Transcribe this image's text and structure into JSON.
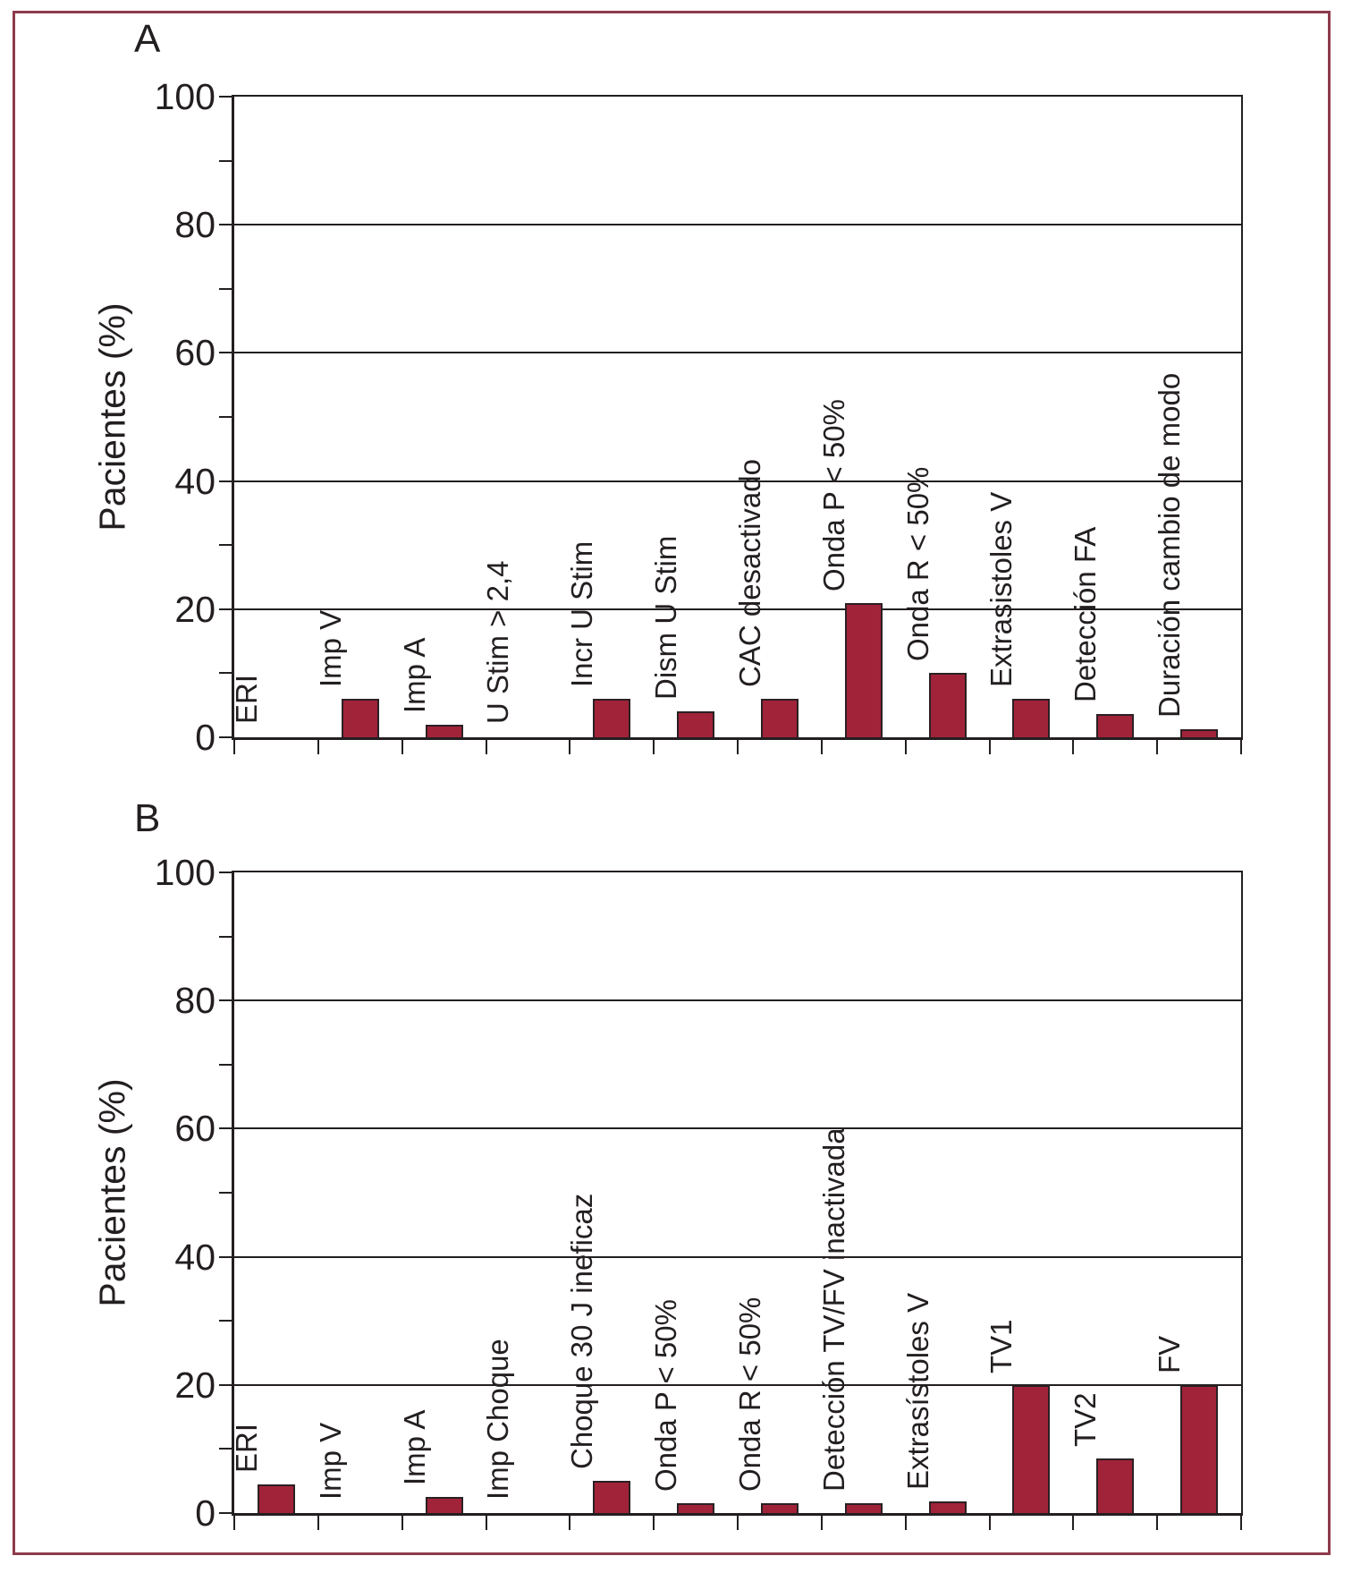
{
  "figure": {
    "background_color": "#ffffff",
    "frame_border_color": "#8e3a4c",
    "axis_color": "#231f20",
    "bar_fill_color": "#a12339",
    "bar_outline_color": "#2b2024"
  },
  "chart_data": [
    {
      "type": "bar",
      "panel_label": "A",
      "ylabel": "Pacientes (%)",
      "ylim": [
        0,
        100
      ],
      "yticks_major": [
        0,
        20,
        40,
        60,
        80,
        100
      ],
      "yticks_minor": [
        10,
        30,
        50,
        70,
        90
      ],
      "grid": "horizontal lines at major ticks",
      "legend": "none",
      "bar_label_rotation_deg": 90,
      "categories": [
        "ERI",
        "Imp V",
        "Imp A",
        "U Stim > 2,4",
        "Incr U Stim",
        "Dism U Stim",
        "CAC desactivado",
        "Onda P < 50%",
        "Onda R < 50%",
        "Extrasistoles V",
        "Detección FA",
        "Duración cambio de modo"
      ],
      "values": [
        0,
        6,
        2,
        0,
        6,
        4,
        6,
        21,
        10,
        6,
        3.7,
        1.2
      ]
    },
    {
      "type": "bar",
      "panel_label": "B",
      "ylabel": "Pacientes (%)",
      "ylim": [
        0,
        100
      ],
      "yticks_major": [
        0,
        20,
        40,
        60,
        80,
        100
      ],
      "yticks_minor": [
        10,
        30,
        50,
        70,
        90
      ],
      "grid": "horizontal lines at major ticks",
      "legend": "none",
      "bar_label_rotation_deg": 90,
      "categories": [
        "ERI",
        "Imp V",
        "Imp A",
        "Imp Choque",
        "Choque 30 J ineficaz",
        "Onda P < 50%",
        "Onda R < 50%",
        "Detección TV/FV inactivada",
        "Extrasístoles V",
        "TV1",
        "TV2",
        "FV"
      ],
      "values": [
        4.5,
        0,
        2.5,
        0,
        5,
        1.5,
        1.5,
        1.5,
        1.8,
        20,
        8.5,
        20
      ]
    }
  ]
}
